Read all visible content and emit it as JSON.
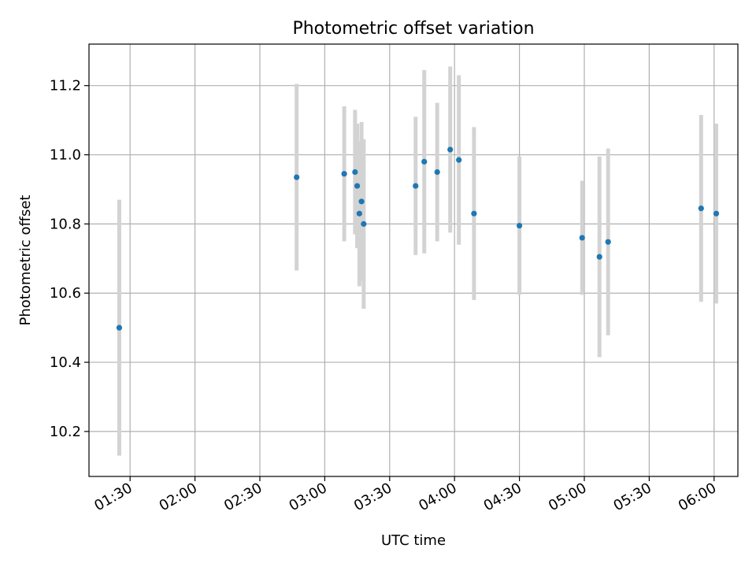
{
  "chart_data": {
    "type": "scatter",
    "title": "Photometric offset variation",
    "xlabel": "UTC time",
    "ylabel": "Photometric offset",
    "x_tick_labels": [
      "01:30",
      "02:00",
      "02:30",
      "03:00",
      "03:30",
      "04:00",
      "04:30",
      "05:00",
      "05:30",
      "06:00"
    ],
    "x_tick_values": [
      "01:30",
      "02:00",
      "02:30",
      "03:00",
      "03:30",
      "04:00",
      "04:30",
      "05:00",
      "05:30",
      "06:00"
    ],
    "y_ticks": [
      10.2,
      10.4,
      10.6,
      10.8,
      11.0,
      11.2
    ],
    "y_tick_labels": [
      "10.2",
      "10.4",
      "10.6",
      "10.8",
      "11.0",
      "11.2"
    ],
    "xlim": [
      "01:11",
      "06:11"
    ],
    "ylim": [
      10.07,
      11.32
    ],
    "grid": true,
    "point_color": "#1f77b4",
    "errorbar_color": "#d3d3d3",
    "points": [
      {
        "x": "01:25",
        "y": 10.5,
        "err": 0.37
      },
      {
        "x": "02:47",
        "y": 10.935,
        "err": 0.27
      },
      {
        "x": "03:09",
        "y": 10.945,
        "err": 0.195
      },
      {
        "x": "03:14",
        "y": 10.95,
        "err": 0.18
      },
      {
        "x": "03:15",
        "y": 10.91,
        "err": 0.18
      },
      {
        "x": "03:16",
        "y": 10.83,
        "err": 0.21
      },
      {
        "x": "03:17",
        "y": 10.865,
        "err": 0.23
      },
      {
        "x": "03:18",
        "y": 10.8,
        "err": 0.245
      },
      {
        "x": "03:42",
        "y": 10.91,
        "err": 0.2
      },
      {
        "x": "03:46",
        "y": 10.98,
        "err": 0.265
      },
      {
        "x": "03:52",
        "y": 10.95,
        "err": 0.2
      },
      {
        "x": "03:58",
        "y": 11.015,
        "err": 0.24
      },
      {
        "x": "04:02",
        "y": 10.985,
        "err": 0.245
      },
      {
        "x": "04:09",
        "y": 10.83,
        "err": 0.25
      },
      {
        "x": "04:30",
        "y": 10.795,
        "err": 0.2
      },
      {
        "x": "04:59",
        "y": 10.76,
        "err": 0.165
      },
      {
        "x": "05:07",
        "y": 10.705,
        "err": 0.29
      },
      {
        "x": "05:11",
        "y": 10.748,
        "err": 0.27
      },
      {
        "x": "05:54",
        "y": 10.845,
        "err": 0.27
      },
      {
        "x": "06:01",
        "y": 10.83,
        "err": 0.26
      }
    ]
  }
}
